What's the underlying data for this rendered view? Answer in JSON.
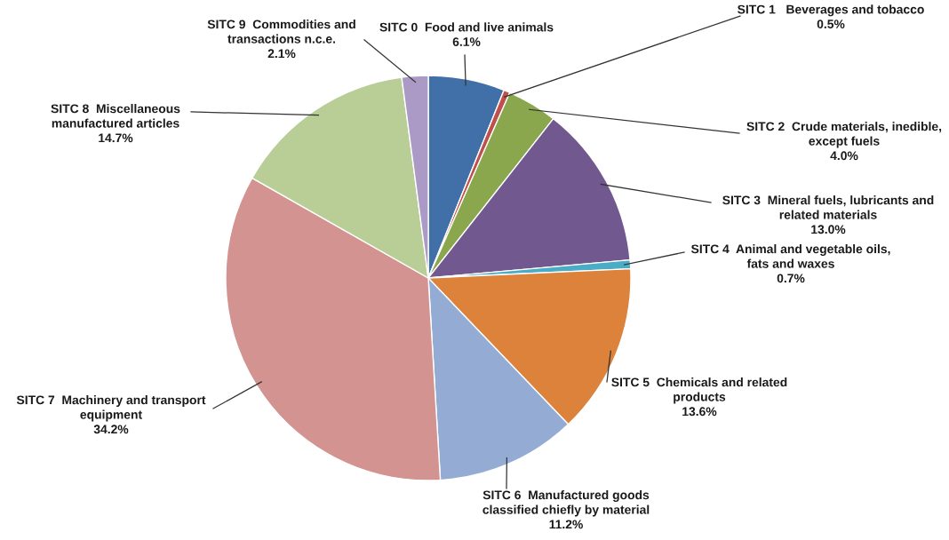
{
  "chart_data": {
    "type": "pie",
    "categories": [
      "SITC 0  Food and live animals",
      "SITC 1   Beverages and tobacco",
      "SITC 2  Crude materials, inedible,\nexcept fuels",
      "SITC 3  Mineral fuels, lubricants and\nrelated materials",
      "SITC 4  Animal and vegetable oils,\nfats and waxes",
      "SITC 5  Chemicals and related\nproducts",
      "SITC 6  Manufactured goods\nclassified chiefly by material",
      "SITC 7  Machinery and transport\nequipment",
      "SITC 8  Miscellaneous\nmanufactured articles",
      "SITC 9  Commodities and\ntransactions n.c.e."
    ],
    "values": [
      6.1,
      0.5,
      4.0,
      13.0,
      0.7,
      13.6,
      11.2,
      34.2,
      14.7,
      2.1
    ],
    "value_labels": [
      "6.1%",
      "0.5%",
      "4.0%",
      "13.0%",
      "0.7%",
      "13.6%",
      "11.2%",
      "34.2%",
      "14.7%",
      "2.1%"
    ],
    "colors": [
      "#4170a8",
      "#c0504d",
      "#8aa74e",
      "#71588f",
      "#4bacc6",
      "#dd823b",
      "#94abd3",
      "#d39391",
      "#b9ce96",
      "#ac9ac6"
    ]
  }
}
